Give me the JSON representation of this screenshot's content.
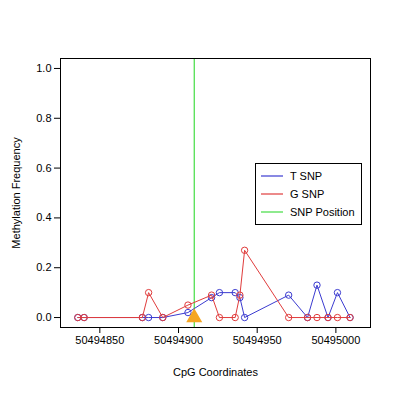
{
  "chart_data": {
    "type": "line",
    "x_label": "CpG Coordinates",
    "y_label": "Methylation Frequency",
    "x": [
      50494836,
      50494840,
      50494877,
      50494881,
      50494890,
      50494906,
      50494921,
      50494926,
      50494936,
      50494939,
      50494942,
      50494970,
      50494982,
      50494988,
      50494995,
      50495001,
      50495009
    ],
    "series": [
      {
        "name": "T SNP",
        "color": "#3b3bd0",
        "marker": "circle-open",
        "values": [
          0,
          0,
          0,
          0,
          0,
          0.02,
          0.08,
          0.1,
          0.1,
          0.08,
          0,
          0.09,
          0,
          0.13,
          0,
          0.1,
          0
        ]
      },
      {
        "name": "G SNP",
        "color": "#e03c3c",
        "marker": "circle-open",
        "values": [
          0,
          0,
          0,
          0.1,
          0,
          0.05,
          0.09,
          0,
          0,
          0.09,
          0.27,
          0,
          0,
          0,
          0,
          0,
          0
        ]
      }
    ],
    "snp": {
      "name": "SNP Position",
      "x": 50494910,
      "color": "#44dd44",
      "marker": "triangle",
      "marker_color": "#f5a623",
      "y": 0
    },
    "xlim": [
      50494825,
      50495022
    ],
    "xticks": [
      50494850,
      50494900,
      50494950,
      50495000
    ],
    "ylim": [
      -0.04,
      1.04
    ],
    "yticks": [
      {
        "value": 0,
        "label": "0.0"
      },
      {
        "value": 0.2,
        "label": "0.2"
      },
      {
        "value": 0.4,
        "label": "0.4"
      },
      {
        "value": 0.6,
        "label": "0.6"
      },
      {
        "value": 0.8,
        "label": "0.8"
      },
      {
        "value": 1,
        "label": "1.0"
      }
    ],
    "legend": "right",
    "grid": false
  }
}
